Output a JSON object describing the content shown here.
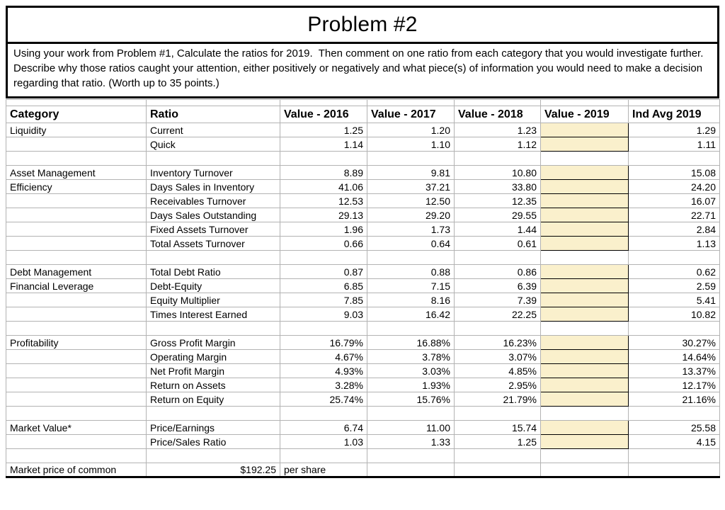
{
  "title": "Problem #2",
  "instructions": "Using your work from Problem #1, Calculate the ratios for 2019.  Then comment on one ratio from each category that you would investigate further.  Describe why those ratios caught your attention, either positively or negatively and what piece(s) of information you would need to make a decision regarding that ratio. (Worth up to 35 points.)",
  "colors": {
    "highlight": "#FAF0CC",
    "grid": "#B3B3B3",
    "border": "#000000"
  },
  "table": {
    "columns": [
      "Category",
      "Ratio",
      "Value - 2016",
      "Value - 2017",
      "Value - 2018",
      "Value - 2019",
      "Ind Avg 2019"
    ],
    "rows": [
      {
        "cells": [
          "Liquidity",
          "Current",
          "1.25",
          "1.20",
          "1.23",
          "",
          "1.29"
        ],
        "input": true
      },
      {
        "cells": [
          "",
          "Quick",
          "1.14",
          "1.10",
          "1.12",
          "",
          "1.11"
        ],
        "input": true
      },
      {
        "cells": [
          "",
          "",
          "",
          "",
          "",
          "",
          ""
        ],
        "input": false
      },
      {
        "cells": [
          "Asset Management",
          "Inventory Turnover",
          "8.89",
          "9.81",
          "10.80",
          "",
          "15.08"
        ],
        "input": true
      },
      {
        "cells": [
          "Efficiency",
          "Days Sales in Inventory",
          "41.06",
          "37.21",
          "33.80",
          "",
          "24.20"
        ],
        "input": true
      },
      {
        "cells": [
          "",
          "Receivables Turnover",
          "12.53",
          "12.50",
          "12.35",
          "",
          "16.07"
        ],
        "input": true
      },
      {
        "cells": [
          "",
          "Days Sales Outstanding",
          "29.13",
          "29.20",
          "29.55",
          "",
          "22.71"
        ],
        "input": true
      },
      {
        "cells": [
          "",
          "Fixed Assets Turnover",
          "1.96",
          "1.73",
          "1.44",
          "",
          "2.84"
        ],
        "input": true
      },
      {
        "cells": [
          "",
          "Total Assets Turnover",
          "0.66",
          "0.64",
          "0.61",
          "",
          "1.13"
        ],
        "input": true
      },
      {
        "cells": [
          "",
          "",
          "",
          "",
          "",
          "",
          ""
        ],
        "input": false
      },
      {
        "cells": [
          "Debt Management",
          "Total Debt Ratio",
          "0.87",
          "0.88",
          "0.86",
          "",
          "0.62"
        ],
        "input": true
      },
      {
        "cells": [
          "Financial Leverage",
          "Debt-Equity",
          "6.85",
          "7.15",
          "6.39",
          "",
          "2.59"
        ],
        "input": true
      },
      {
        "cells": [
          "",
          "Equity Multiplier",
          "7.85",
          "8.16",
          "7.39",
          "",
          "5.41"
        ],
        "input": true
      },
      {
        "cells": [
          "",
          "Times Interest Earned",
          "9.03",
          "16.42",
          "22.25",
          "",
          "10.82"
        ],
        "input": true
      },
      {
        "cells": [
          "",
          "",
          "",
          "",
          "",
          "",
          ""
        ],
        "input": false
      },
      {
        "cells": [
          "Profitability",
          "Gross Profit Margin",
          "16.79%",
          "16.88%",
          "16.23%",
          "",
          "30.27%"
        ],
        "input": true
      },
      {
        "cells": [
          "",
          "Operating Margin",
          "4.67%",
          "3.78%",
          "3.07%",
          "",
          "14.64%"
        ],
        "input": true
      },
      {
        "cells": [
          "",
          "Net Profit Margin",
          "4.93%",
          "3.03%",
          "4.85%",
          "",
          "13.37%"
        ],
        "input": true
      },
      {
        "cells": [
          "",
          "Return on Assets",
          "3.28%",
          "1.93%",
          "2.95%",
          "",
          "12.17%"
        ],
        "input": true
      },
      {
        "cells": [
          "",
          "Return on Equity",
          "25.74%",
          "15.76%",
          "21.79%",
          "",
          "21.16%"
        ],
        "input": true
      },
      {
        "cells": [
          "",
          "",
          "",
          "",
          "",
          "",
          ""
        ],
        "input": false
      },
      {
        "cells": [
          "Market Value*",
          "Price/Earnings",
          "6.74",
          "11.00",
          "15.74",
          "",
          "25.58"
        ],
        "input": true
      },
      {
        "cells": [
          "",
          "Price/Sales Ratio",
          "1.03",
          "1.33",
          "1.25",
          "",
          "4.15"
        ],
        "input": true
      },
      {
        "cells": [
          "",
          "",
          "",
          "",
          "",
          "",
          ""
        ],
        "input": false
      },
      {
        "cells": [
          "Market price of common",
          "$192.25",
          "per share",
          "",
          "",
          "",
          ""
        ],
        "input": false,
        "aligns": {
          "1": "r",
          "2": "l"
        }
      }
    ]
  }
}
